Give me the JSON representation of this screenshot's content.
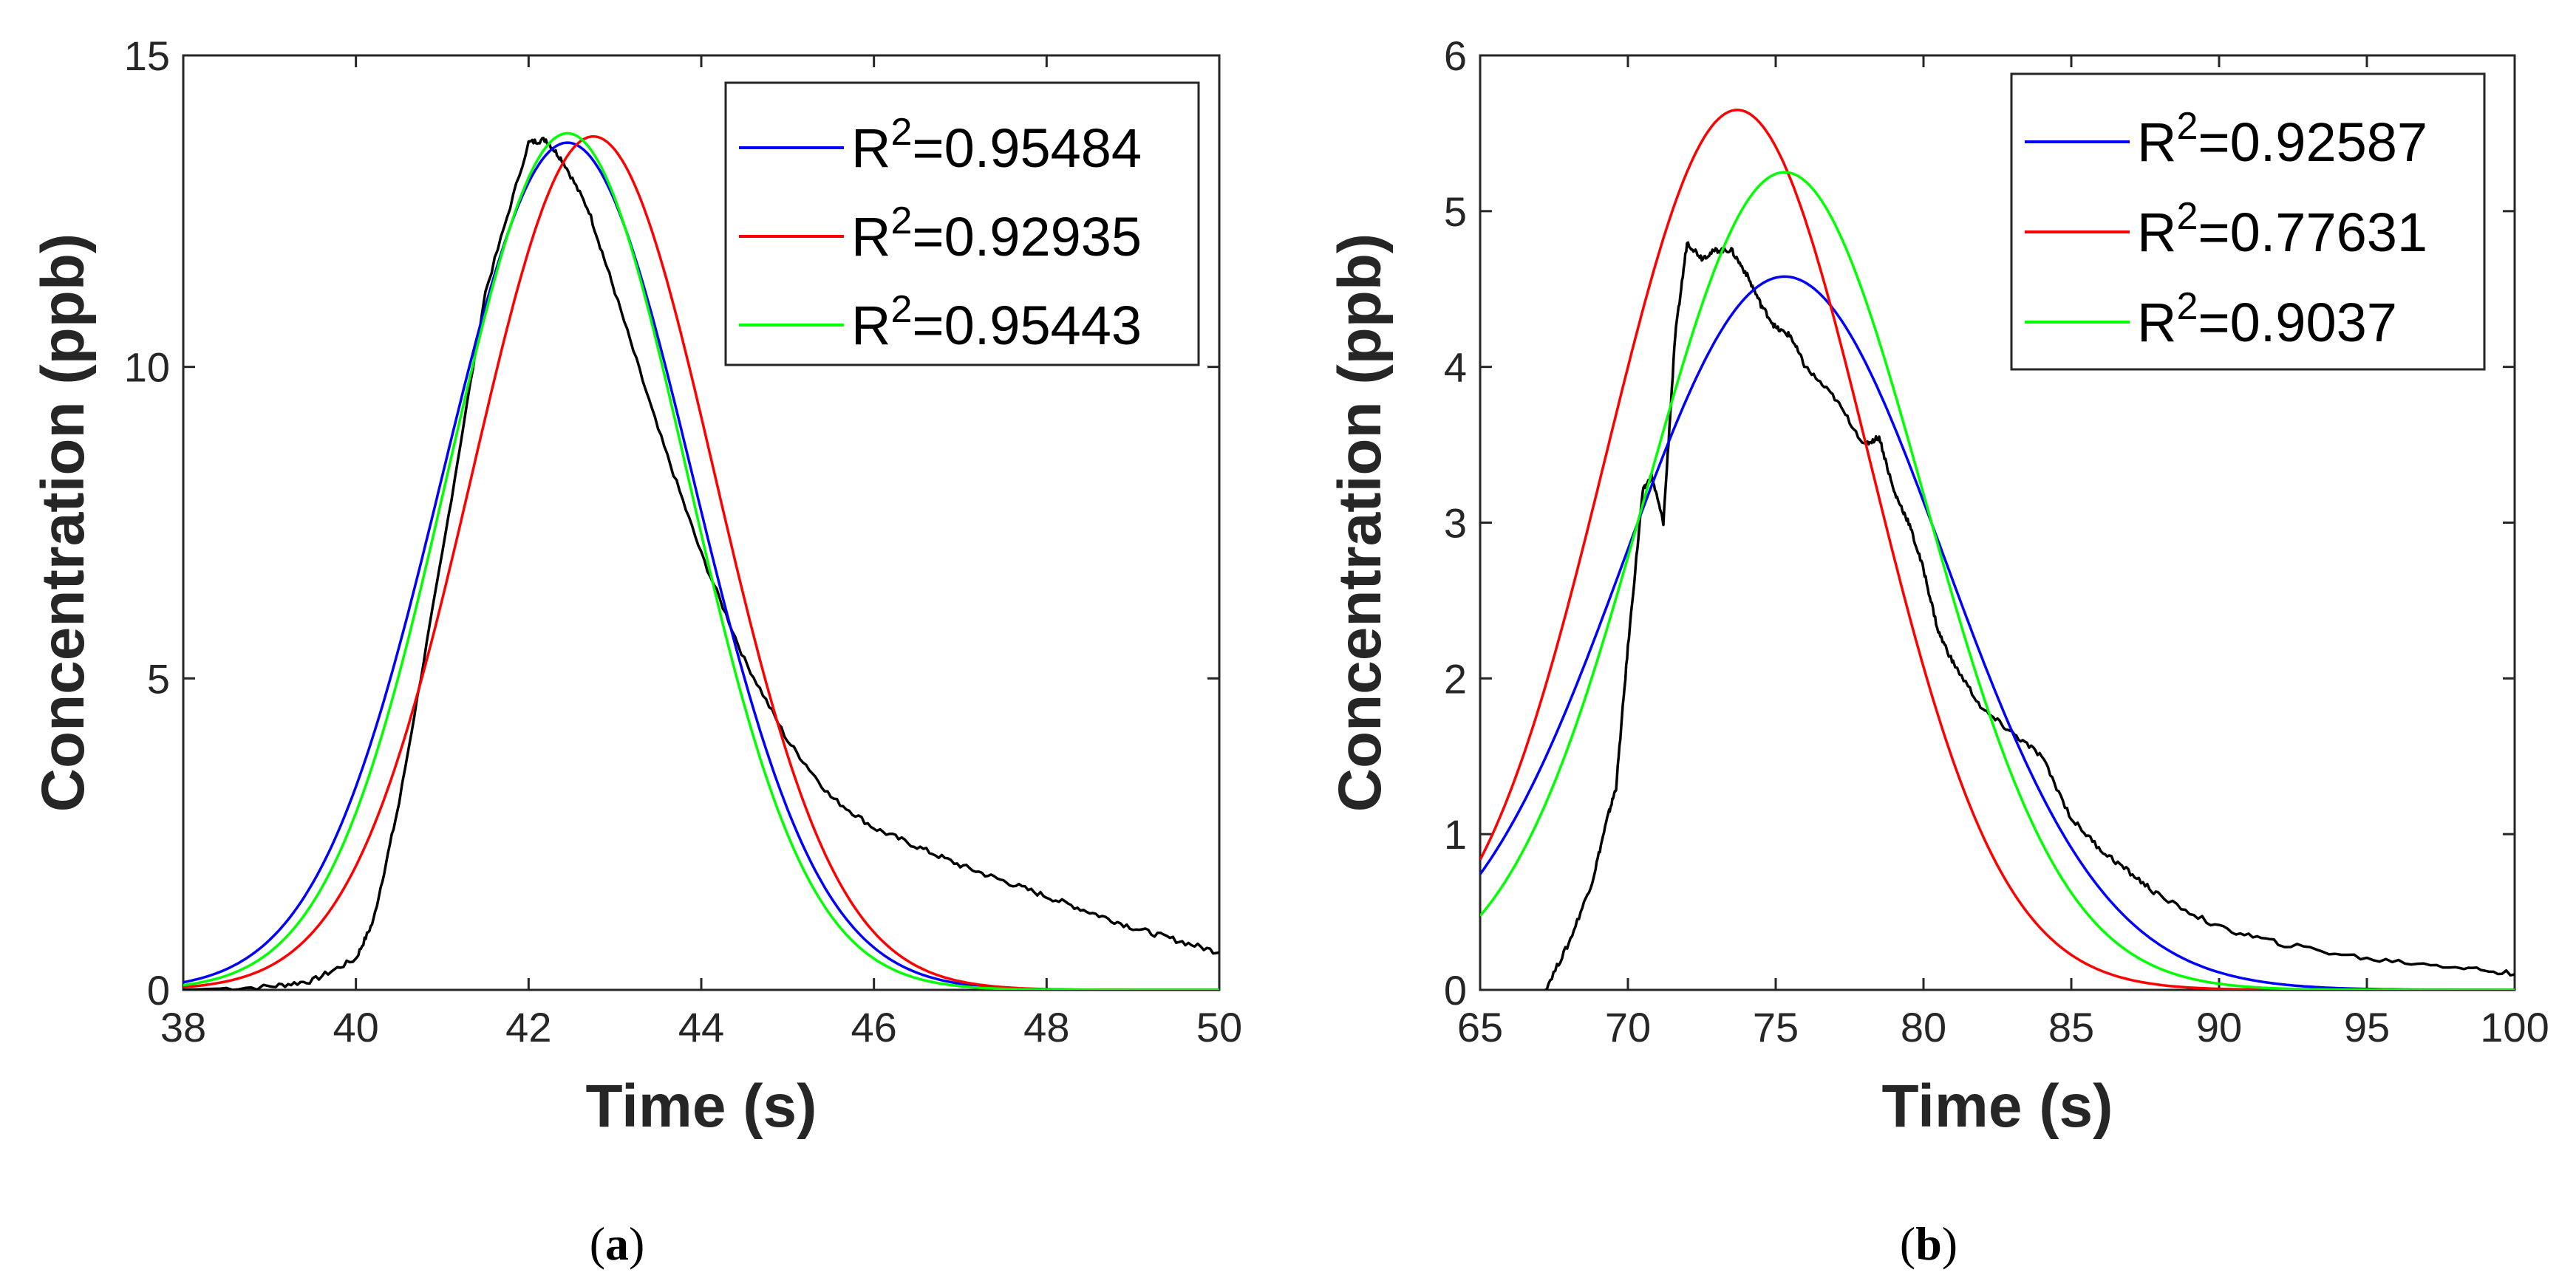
{
  "chart_data": [
    {
      "type": "line",
      "panel_label": "a",
      "caption": [
        "(",
        "a",
        ")"
      ],
      "xlabel": "Time (s)",
      "ylabel": "Concentration (ppb)",
      "xlim": [
        38,
        50
      ],
      "ylim": [
        0,
        15
      ],
      "xticks": [
        38,
        40,
        42,
        44,
        46,
        48,
        50
      ],
      "yticks": [
        0,
        5,
        10,
        15
      ],
      "colors": {
        "measured": "#000000",
        "blue": "#0000ff",
        "red": "#ff0000",
        "green": "#00ff00"
      },
      "legend": {
        "position": "top-right",
        "entries": [
          {
            "label_prefix": "R",
            "superscript": "2",
            "label_value": "=0.95484",
            "color": "#0000ff"
          },
          {
            "label_prefix": "R",
            "superscript": "2",
            "label_value": "=0.92935",
            "color": "#ff0000"
          },
          {
            "label_prefix": "R",
            "superscript": "2",
            "label_value": "=0.95443",
            "color": "#00ff00"
          }
        ]
      },
      "series": [
        {
          "name": "measured",
          "color": "#000000",
          "x": [
            38,
            39,
            39.5,
            40,
            40.2,
            40.5,
            41,
            41.5,
            42,
            42.2,
            42.4,
            42.7,
            43,
            43.5,
            44,
            44.5,
            45,
            45.5,
            46,
            46.5,
            47,
            47.5,
            48,
            48.5,
            49,
            49.5,
            50
          ],
          "y": [
            0,
            0.05,
            0.15,
            0.5,
            1.1,
            3.0,
            7.0,
            11.2,
            13.6,
            13.65,
            13.3,
            12.5,
            11.2,
            9.0,
            7.0,
            5.3,
            4.0,
            3.1,
            2.6,
            2.3,
            2.0,
            1.75,
            1.5,
            1.25,
            1.0,
            0.8,
            0.6
          ]
        },
        {
          "name": "fit-blue",
          "color": "#0000ff",
          "model": "gaussian",
          "params": {
            "amplitude": 13.6,
            "center": 42.45,
            "sigma": 1.45
          }
        },
        {
          "name": "fit-red",
          "color": "#ff0000",
          "model": "gaussian",
          "params": {
            "amplitude": 13.7,
            "center": 42.75,
            "sigma": 1.4
          }
        },
        {
          "name": "fit-green",
          "color": "#00ff00",
          "model": "gaussian",
          "params": {
            "amplitude": 13.75,
            "center": 42.45,
            "sigma": 1.38
          }
        }
      ]
    },
    {
      "type": "line",
      "panel_label": "b",
      "caption": [
        "(",
        "b",
        ")"
      ],
      "xlabel": "Time (s)",
      "ylabel": "Concentration (ppb)",
      "xlim": [
        65,
        100
      ],
      "ylim": [
        0,
        6
      ],
      "xticks": [
        65,
        70,
        75,
        80,
        85,
        90,
        95,
        100
      ],
      "yticks": [
        0,
        1,
        2,
        3,
        4,
        5,
        6
      ],
      "colors": {
        "measured": "#000000",
        "blue": "#0000ff",
        "red": "#ff0000",
        "green": "#00ff00"
      },
      "legend": {
        "position": "top-right",
        "entries": [
          {
            "label_prefix": "R",
            "superscript": "2",
            "label_value": "=0.92587",
            "color": "#0000ff"
          },
          {
            "label_prefix": "R",
            "superscript": "2",
            "label_value": "=0.77631",
            "color": "#ff0000"
          },
          {
            "label_prefix": "R",
            "superscript": "2",
            "label_value": "=0.9037",
            "color": "#00ff00"
          }
        ]
      },
      "series": [
        {
          "name": "measured",
          "color": "#000000",
          "x": [
            67.2,
            68,
            68.8,
            69.3,
            69.6,
            70,
            70.5,
            70.8,
            71.2,
            71.6,
            72,
            72.5,
            73,
            73.5,
            74,
            74.5,
            75,
            75.5,
            76,
            77,
            78,
            78.5,
            79,
            79.5,
            80,
            80.5,
            81,
            82,
            83,
            84,
            85,
            86,
            87,
            88,
            90,
            92,
            95,
            98,
            100
          ],
          "y": [
            0,
            0.3,
            0.7,
            1.1,
            1.3,
            2.2,
            3.2,
            3.3,
            3.0,
            4.2,
            4.8,
            4.7,
            4.75,
            4.75,
            4.6,
            4.4,
            4.25,
            4.2,
            4.0,
            3.8,
            3.5,
            3.55,
            3.2,
            3.0,
            2.7,
            2.3,
            2.1,
            1.8,
            1.65,
            1.5,
            1.1,
            0.9,
            0.75,
            0.6,
            0.4,
            0.3,
            0.2,
            0.15,
            0.1
          ]
        },
        {
          "name": "fit-blue",
          "color": "#0000ff",
          "model": "gaussian",
          "params": {
            "amplitude": 4.58,
            "center": 75.3,
            "sigma": 5.4
          }
        },
        {
          "name": "fit-red",
          "color": "#ff0000",
          "model": "gaussian",
          "params": {
            "amplitude": 5.65,
            "center": 73.7,
            "sigma": 4.45
          }
        },
        {
          "name": "fit-green",
          "color": "#00ff00",
          "model": "gaussian",
          "params": {
            "amplitude": 5.25,
            "center": 75.3,
            "sigma": 4.7
          }
        }
      ]
    }
  ]
}
